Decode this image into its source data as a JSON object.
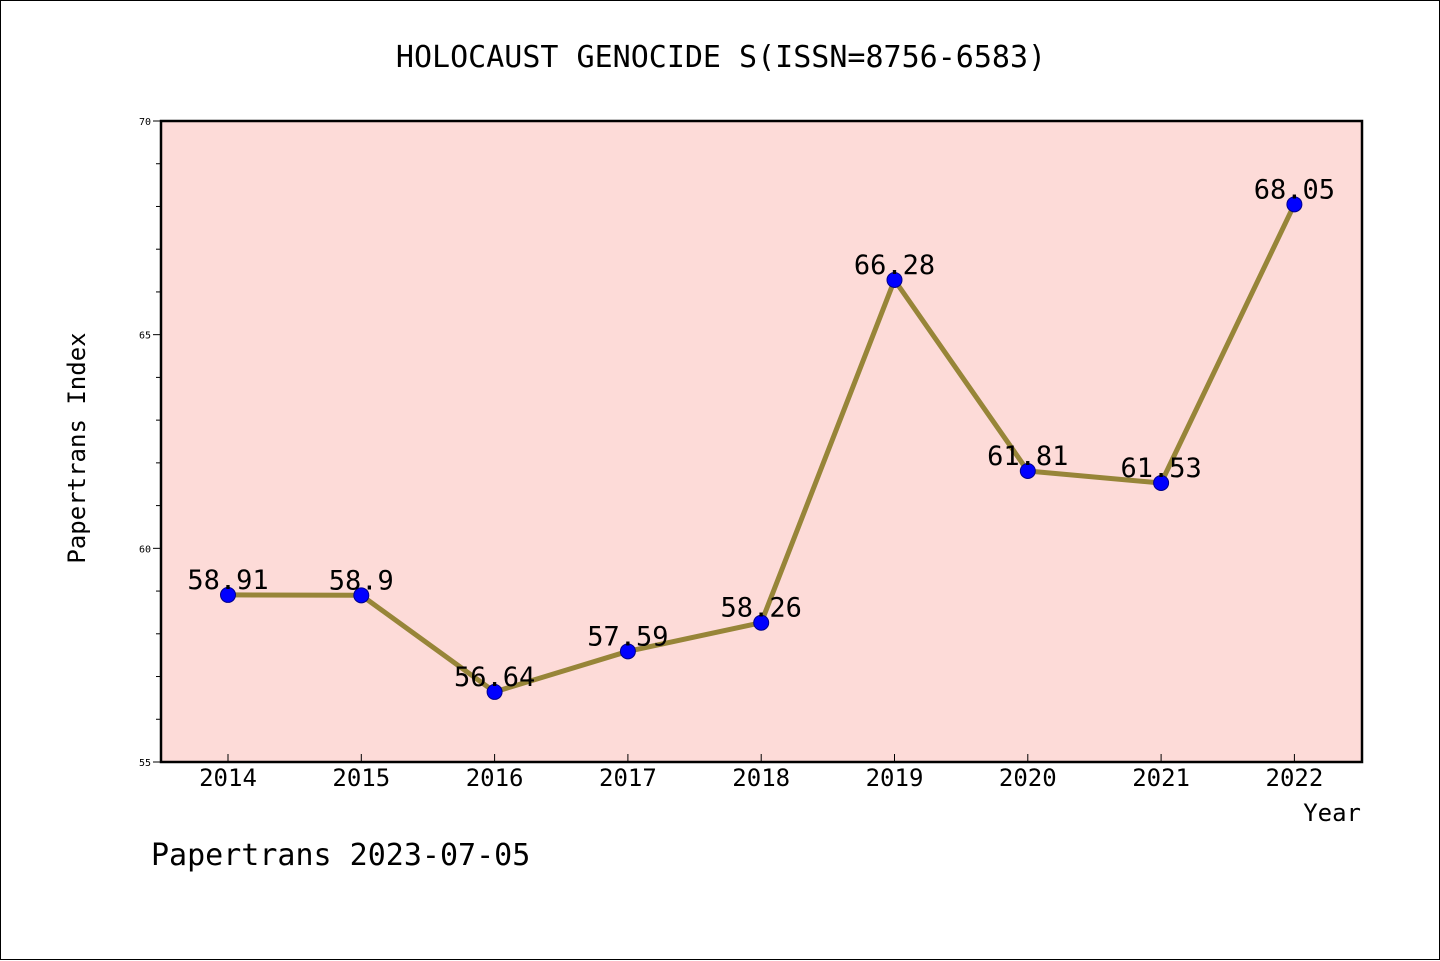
{
  "chart_data": {
    "type": "line",
    "title": "HOLOCAUST GENOCIDE S(ISSN=8756-6583)",
    "xlabel": "Year",
    "ylabel": "Papertrans Index",
    "categories": [
      "2014",
      "2015",
      "2016",
      "2017",
      "2018",
      "2019",
      "2020",
      "2021",
      "2022"
    ],
    "values": [
      58.91,
      58.9,
      56.64,
      57.59,
      58.26,
      66.28,
      61.81,
      61.53,
      68.05
    ],
    "data_labels": [
      "58.91",
      "58.9",
      "56.64",
      "57.59",
      "58.26",
      "66.28",
      "61.81",
      "61.53",
      "68.05"
    ],
    "ylim": [
      55,
      70
    ],
    "y_ticks": [
      55,
      60,
      65,
      70
    ],
    "y_minor_step": 1,
    "grid": false,
    "legend": "none",
    "colors": {
      "plot_background": "#fddbd8",
      "line": "#978538",
      "marker": "#0000ff",
      "axis": "#000000"
    }
  },
  "footer": {
    "text": "Papertrans 2023-07-05"
  }
}
